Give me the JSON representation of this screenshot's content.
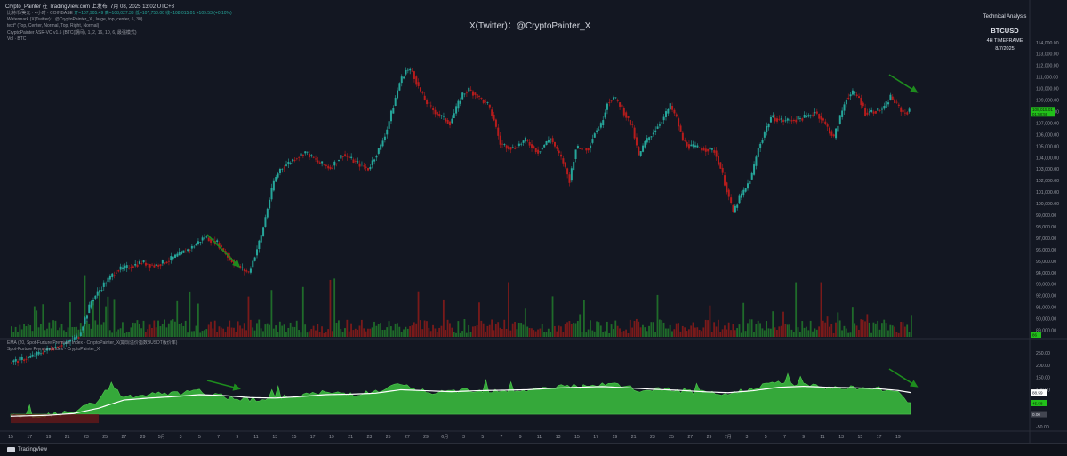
{
  "topbar": "Crypto_Painter 在 TradingView.com 上发布, 7月 08, 2025 13:02 UTC+8",
  "legend": {
    "line1_symbol": "比特币/美元 · 4小时 · COINBASE",
    "line1_ohlc": "开=107,905.49  高=108,027.33  低=107,750.00  收=108,015.01  +109.53 (+0.10%)",
    "line2": "Watermark (X(Twitter)：@CryptoPainter_X , large, top, center, 5, 30)",
    "line3": "text* (Top, Center, Normal, Top, Right, Normal)",
    "line4": "CryptoPainter ASR-VC v1.5 (BTC(期间), 1, 2, 16, 10, 6, 最强模式)",
    "line5": "Vol · BTC"
  },
  "watermark": "X(Twitter)：@CryptoPainter_X",
  "ta_box": {
    "title": "Technical Analysis",
    "symbol": "BTCUSD",
    "timeframe": "4H TIMEFRAME",
    "date": "8/7/2025"
  },
  "indicator_legend": {
    "line1": "EMA (20, Spot-Furture Premium Index - CryptoPainter_X(期现溢价指数BUSDT版价率)",
    "line2": "Spot-Furture Premium Index - CryptoPainter_X"
  },
  "footer_brand": "TradingView",
  "colors": {
    "bg": "#131722",
    "up": "#26a69a",
    "green": "#2e9e2e",
    "down": "#b71c1c",
    "area": "#35a83a",
    "ema": "#ffffff",
    "arrow": "#1e8c1e"
  },
  "chart_data": [
    {
      "type": "candlestick",
      "title": "",
      "symbol": "BTCUSD",
      "timeframe": "4H",
      "y_ticks": [
        "114,000.00",
        "113,000.00",
        "112,000.00",
        "111,000.00",
        "110,000.00",
        "109,000.00",
        "108,000.00",
        "107,000.00",
        "106,000.00",
        "105,000.00",
        "104,000.00",
        "103,000.00",
        "102,000.00",
        "101,000.00",
        "100,000.00",
        "99,000.00",
        "98,000.00",
        "97,000.00",
        "96,000.00",
        "95,000.00",
        "94,000.00",
        "93,000.00",
        "92,000.00",
        "91,000.00",
        "90,000.00",
        "89,000.00"
      ],
      "ylim": [
        88500,
        114600
      ],
      "last_price_label": "108,015.01",
      "countdown_label": "01:58:59",
      "volume_label": "86",
      "close_path": [
        {
          "x": 0,
          "y": 86200
        },
        {
          "x": 3,
          "y": 86600
        },
        {
          "x": 6,
          "y": 87300
        },
        {
          "x": 9,
          "y": 87900
        },
        {
          "x": 11,
          "y": 88500
        },
        {
          "x": 13,
          "y": 91500
        },
        {
          "x": 15,
          "y": 93000
        },
        {
          "x": 17,
          "y": 94200
        },
        {
          "x": 19,
          "y": 94500
        },
        {
          "x": 21,
          "y": 94900
        },
        {
          "x": 23,
          "y": 94600
        },
        {
          "x": 25,
          "y": 95000
        },
        {
          "x": 27,
          "y": 95600
        },
        {
          "x": 29,
          "y": 96200
        },
        {
          "x": 31,
          "y": 97100
        },
        {
          "x": 33,
          "y": 96600
        },
        {
          "x": 35,
          "y": 95200
        },
        {
          "x": 37,
          "y": 94300
        },
        {
          "x": 38,
          "y": 94000
        },
        {
          "x": 39,
          "y": 95500
        },
        {
          "x": 40,
          "y": 97200
        },
        {
          "x": 41,
          "y": 99600
        },
        {
          "x": 42,
          "y": 101900
        },
        {
          "x": 43,
          "y": 103000
        },
        {
          "x": 45,
          "y": 103800
        },
        {
          "x": 47,
          "y": 104500
        },
        {
          "x": 49,
          "y": 103600
        },
        {
          "x": 51,
          "y": 103100
        },
        {
          "x": 53,
          "y": 104300
        },
        {
          "x": 55,
          "y": 103600
        },
        {
          "x": 57,
          "y": 103000
        },
        {
          "x": 59,
          "y": 105000
        },
        {
          "x": 60,
          "y": 106500
        },
        {
          "x": 61,
          "y": 108500
        },
        {
          "x": 62,
          "y": 110500
        },
        {
          "x": 63,
          "y": 111600
        },
        {
          "x": 64,
          "y": 111500
        },
        {
          "x": 65,
          "y": 110100
        },
        {
          "x": 66,
          "y": 109000
        },
        {
          "x": 67,
          "y": 108300
        },
        {
          "x": 68,
          "y": 107800
        },
        {
          "x": 70,
          "y": 107000
        },
        {
          "x": 72,
          "y": 109500
        },
        {
          "x": 73,
          "y": 109900
        },
        {
          "x": 74,
          "y": 109500
        },
        {
          "x": 76,
          "y": 108600
        },
        {
          "x": 77,
          "y": 107300
        },
        {
          "x": 78,
          "y": 105200
        },
        {
          "x": 80,
          "y": 104800
        },
        {
          "x": 82,
          "y": 105500
        },
        {
          "x": 84,
          "y": 104500
        },
        {
          "x": 86,
          "y": 105700
        },
        {
          "x": 87,
          "y": 104600
        },
        {
          "x": 88,
          "y": 103600
        },
        {
          "x": 89,
          "y": 102000
        },
        {
          "x": 90,
          "y": 104800
        },
        {
          "x": 92,
          "y": 104800
        },
        {
          "x": 93,
          "y": 106200
        },
        {
          "x": 94,
          "y": 106800
        },
        {
          "x": 95,
          "y": 108800
        },
        {
          "x": 96,
          "y": 109200
        },
        {
          "x": 97,
          "y": 108600
        },
        {
          "x": 98,
          "y": 107600
        },
        {
          "x": 99,
          "y": 106600
        },
        {
          "x": 100,
          "y": 104100
        },
        {
          "x": 101,
          "y": 105300
        },
        {
          "x": 102,
          "y": 106000
        },
        {
          "x": 104,
          "y": 107500
        },
        {
          "x": 105,
          "y": 108500
        },
        {
          "x": 106,
          "y": 107400
        },
        {
          "x": 107,
          "y": 105500
        },
        {
          "x": 108,
          "y": 105000
        },
        {
          "x": 110,
          "y": 104800
        },
        {
          "x": 112,
          "y": 104600
        },
        {
          "x": 113,
          "y": 103100
        },
        {
          "x": 114,
          "y": 101200
        },
        {
          "x": 115,
          "y": 99200
        },
        {
          "x": 116,
          "y": 100500
        },
        {
          "x": 117,
          "y": 101300
        },
        {
          "x": 118,
          "y": 102500
        },
        {
          "x": 119,
          "y": 104800
        },
        {
          "x": 120,
          "y": 106200
        },
        {
          "x": 121,
          "y": 107500
        },
        {
          "x": 123,
          "y": 107200
        },
        {
          "x": 125,
          "y": 107300
        },
        {
          "x": 127,
          "y": 107600
        },
        {
          "x": 128,
          "y": 108000
        },
        {
          "x": 129,
          "y": 107400
        },
        {
          "x": 130,
          "y": 106600
        },
        {
          "x": 131,
          "y": 105700
        },
        {
          "x": 132,
          "y": 107500
        },
        {
          "x": 133,
          "y": 109200
        },
        {
          "x": 134,
          "y": 109600
        },
        {
          "x": 135,
          "y": 109200
        },
        {
          "x": 136,
          "y": 107900
        },
        {
          "x": 138,
          "y": 108100
        },
        {
          "x": 139,
          "y": 108300
        },
        {
          "x": 140,
          "y": 109300
        },
        {
          "x": 141,
          "y": 108600
        },
        {
          "x": 142,
          "y": 107900
        },
        {
          "x": 143,
          "y": 108015
        }
      ],
      "volume_label_note": ""
    },
    {
      "type": "area",
      "series": [
        {
          "name": "Spot-Furture Premium Index - CryptoPainter_X"
        },
        {
          "name": "EMA (20, Spot-Furture Premium Index - CryptoPainter_X(期现溢价指数BUSDT版价率)"
        }
      ],
      "y_ticks": [
        "250.00",
        "200.00",
        "150.00",
        "100.00",
        "50.00",
        "0.00",
        "-50.00"
      ],
      "ylim": [
        -65,
        290
      ],
      "labels": {
        "ema": "88.59",
        "value": "45.58",
        "zero": "0.00"
      },
      "premium_points": [
        {
          "x": 0,
          "y": -10
        },
        {
          "x": 6,
          "y": -3
        },
        {
          "x": 10,
          "y": 8
        },
        {
          "x": 14,
          "y": 55
        },
        {
          "x": 16,
          "y": 125
        },
        {
          "x": 18,
          "y": 68
        },
        {
          "x": 22,
          "y": 80
        },
        {
          "x": 26,
          "y": 84
        },
        {
          "x": 30,
          "y": 92
        },
        {
          "x": 34,
          "y": 70
        },
        {
          "x": 38,
          "y": 62
        },
        {
          "x": 42,
          "y": 64
        },
        {
          "x": 46,
          "y": 78
        },
        {
          "x": 50,
          "y": 88
        },
        {
          "x": 54,
          "y": 84
        },
        {
          "x": 58,
          "y": 90
        },
        {
          "x": 62,
          "y": 122
        },
        {
          "x": 64,
          "y": 102
        },
        {
          "x": 68,
          "y": 85
        },
        {
          "x": 72,
          "y": 100
        },
        {
          "x": 76,
          "y": 98
        },
        {
          "x": 80,
          "y": 96
        },
        {
          "x": 84,
          "y": 102
        },
        {
          "x": 88,
          "y": 118
        },
        {
          "x": 92,
          "y": 110
        },
        {
          "x": 96,
          "y": 125
        },
        {
          "x": 100,
          "y": 95
        },
        {
          "x": 104,
          "y": 102
        },
        {
          "x": 108,
          "y": 92
        },
        {
          "x": 112,
          "y": 82
        },
        {
          "x": 114,
          "y": 78
        },
        {
          "x": 118,
          "y": 110
        },
        {
          "x": 122,
          "y": 130
        },
        {
          "x": 126,
          "y": 118
        },
        {
          "x": 130,
          "y": 108
        },
        {
          "x": 134,
          "y": 110
        },
        {
          "x": 138,
          "y": 102
        },
        {
          "x": 141,
          "y": 94
        },
        {
          "x": 143,
          "y": 45.58
        }
      ],
      "ema_points": [
        {
          "x": 0,
          "y": -8
        },
        {
          "x": 6,
          "y": -4
        },
        {
          "x": 10,
          "y": 3
        },
        {
          "x": 14,
          "y": 25
        },
        {
          "x": 18,
          "y": 58
        },
        {
          "x": 22,
          "y": 66
        },
        {
          "x": 26,
          "y": 72
        },
        {
          "x": 30,
          "y": 80
        },
        {
          "x": 34,
          "y": 76
        },
        {
          "x": 38,
          "y": 68
        },
        {
          "x": 42,
          "y": 66
        },
        {
          "x": 46,
          "y": 72
        },
        {
          "x": 50,
          "y": 80
        },
        {
          "x": 54,
          "y": 82
        },
        {
          "x": 58,
          "y": 86
        },
        {
          "x": 62,
          "y": 100
        },
        {
          "x": 66,
          "y": 96
        },
        {
          "x": 70,
          "y": 92
        },
        {
          "x": 74,
          "y": 96
        },
        {
          "x": 78,
          "y": 98
        },
        {
          "x": 82,
          "y": 100
        },
        {
          "x": 86,
          "y": 106
        },
        {
          "x": 90,
          "y": 110
        },
        {
          "x": 94,
          "y": 113
        },
        {
          "x": 98,
          "y": 108
        },
        {
          "x": 102,
          "y": 102
        },
        {
          "x": 106,
          "y": 98
        },
        {
          "x": 110,
          "y": 92
        },
        {
          "x": 114,
          "y": 88
        },
        {
          "x": 118,
          "y": 96
        },
        {
          "x": 122,
          "y": 110
        },
        {
          "x": 126,
          "y": 114
        },
        {
          "x": 130,
          "y": 110
        },
        {
          "x": 134,
          "y": 108
        },
        {
          "x": 138,
          "y": 104
        },
        {
          "x": 141,
          "y": 97
        },
        {
          "x": 143,
          "y": 88.59
        }
      ]
    }
  ],
  "x_axis": {
    "labels": [
      {
        "t": "15",
        "x": 0
      },
      {
        "t": "17",
        "x": 3
      },
      {
        "t": "19",
        "x": 6
      },
      {
        "t": "21",
        "x": 9
      },
      {
        "t": "23",
        "x": 12
      },
      {
        "t": "25",
        "x": 15
      },
      {
        "t": "27",
        "x": 18
      },
      {
        "t": "29",
        "x": 21
      },
      {
        "t": "5月",
        "x": 24
      },
      {
        "t": "3",
        "x": 27
      },
      {
        "t": "5",
        "x": 30
      },
      {
        "t": "7",
        "x": 33
      },
      {
        "t": "9",
        "x": 36
      },
      {
        "t": "11",
        "x": 39
      },
      {
        "t": "13",
        "x": 42
      },
      {
        "t": "15",
        "x": 45
      },
      {
        "t": "17",
        "x": 48
      },
      {
        "t": "19",
        "x": 51
      },
      {
        "t": "21",
        "x": 54
      },
      {
        "t": "23",
        "x": 57
      },
      {
        "t": "25",
        "x": 60
      },
      {
        "t": "27",
        "x": 63
      },
      {
        "t": "29",
        "x": 66
      },
      {
        "t": "6月",
        "x": 69
      },
      {
        "t": "3",
        "x": 72
      },
      {
        "t": "5",
        "x": 75
      },
      {
        "t": "7",
        "x": 78
      },
      {
        "t": "9",
        "x": 81
      },
      {
        "t": "11",
        "x": 84
      },
      {
        "t": "13",
        "x": 87
      },
      {
        "t": "15",
        "x": 90
      },
      {
        "t": "17",
        "x": 93
      },
      {
        "t": "19",
        "x": 96
      },
      {
        "t": "21",
        "x": 99
      },
      {
        "t": "23",
        "x": 102
      },
      {
        "t": "25",
        "x": 105
      },
      {
        "t": "27",
        "x": 108
      },
      {
        "t": "29",
        "x": 111
      },
      {
        "t": "7月",
        "x": 114
      },
      {
        "t": "3",
        "x": 117
      },
      {
        "t": "5",
        "x": 120
      },
      {
        "t": "7",
        "x": 123
      },
      {
        "t": "9",
        "x": 126
      },
      {
        "t": "11",
        "x": 129
      },
      {
        "t": "13",
        "x": 132
      },
      {
        "t": "15",
        "x": 135
      },
      {
        "t": "17",
        "x": 138
      },
      {
        "t": "19",
        "x": 141
      }
    ]
  }
}
